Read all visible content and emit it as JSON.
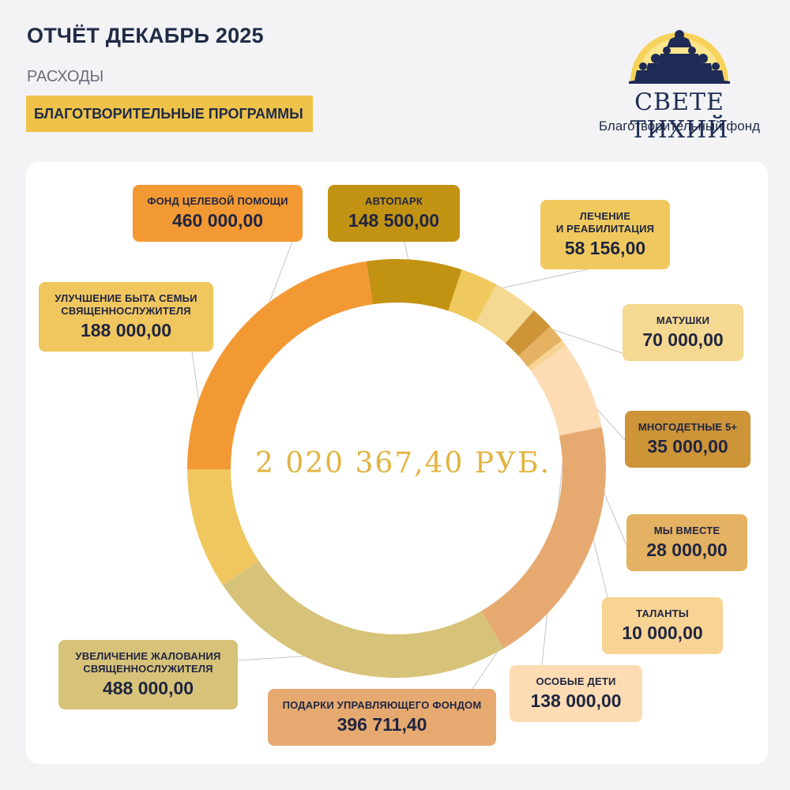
{
  "header": {
    "title": "ОТЧЁТ ДЕКАБРЬ 2025",
    "subtitle": "РАСХОДЫ",
    "tag": "БЛАГОТВОРИТЕЛЬНЫЕ ПРОГРАММЫ"
  },
  "logo": {
    "name": "СВЕТЕ ТИХИЙ",
    "sub": "Благотворительный фонд"
  },
  "chart_data": {
    "type": "pie",
    "donut": true,
    "total": "2 020 367,40 РУБ.",
    "title": "",
    "slices": [
      {
        "label": "АВТОПАРК",
        "value": 148500.0,
        "display": "148 500,00",
        "color": "#c29313"
      },
      {
        "label": "ЛЕЧЕНИЕ\nИ РЕАБИЛИТАЦИЯ",
        "value": 58156.0,
        "display": "58 156,00",
        "color": "#f0c95e"
      },
      {
        "label": "МАТУШКИ",
        "value": 70000.0,
        "display": "70 000,00",
        "color": "#f5d891"
      },
      {
        "label": "МНОГОДЕТНЫЕ 5+",
        "value": 35000.0,
        "display": "35 000,00",
        "color": "#cd9438"
      },
      {
        "label": "МЫ ВМЕСТЕ",
        "value": 28000.0,
        "display": "28 000,00",
        "color": "#e5b162"
      },
      {
        "label": "ТАЛАНТЫ",
        "value": 10000.0,
        "display": "10 000,00",
        "color": "#f7d394"
      },
      {
        "label": "ОСОБЫЕ ДЕТИ",
        "value": 138000.0,
        "display": "138 000,00",
        "color": "#fddcb4"
      },
      {
        "label": "ПОДАРКИ УПРАВЛЯЮЩЕГО ФОНДОМ",
        "value": 396711.4,
        "display": "396 711,40",
        "color": "#e6aa71"
      },
      {
        "label": "УВЕЛИЧЕНИЕ ЖАЛОВАНИЯ\nСВЯЩЕННОСЛУЖИТЕЛЯ",
        "value": 488000.0,
        "display": "488 000,00",
        "color": "#d7c279"
      },
      {
        "label": "УЛУЧШЕНИЕ БЫТА СЕМЬИ\nСВЯЩЕННОСЛУЖИТЕЛЯ",
        "value": 188000.0,
        "display": "188 000,00",
        "color": "#f0c65e"
      },
      {
        "label": "ФОНД ЦЕЛЕВОЙ ПОМОЩИ",
        "value": 460000.0,
        "display": "460 000,00",
        "color": "#f39934"
      }
    ]
  }
}
